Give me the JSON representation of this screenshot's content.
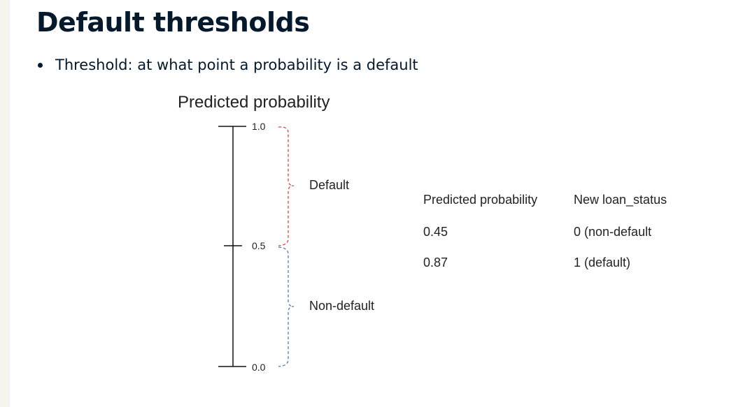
{
  "slide": {
    "title": "Default thresholds",
    "bullet": "Threshold: at what point a probability is a default"
  },
  "diagram": {
    "title": "Predicted probability",
    "ticks": [
      "1.0",
      "0.5",
      "0.0"
    ],
    "regions": {
      "default": {
        "label": "Default",
        "color": "#e8403a"
      },
      "non_default": {
        "label": "Non-default",
        "color": "#4a7fc1"
      }
    }
  },
  "table": {
    "headers": [
      "Predicted probability",
      "New loan_status"
    ],
    "rows": [
      [
        "0.45",
        "0 (non-default"
      ],
      [
        "0.87",
        "1 (default)"
      ]
    ]
  }
}
